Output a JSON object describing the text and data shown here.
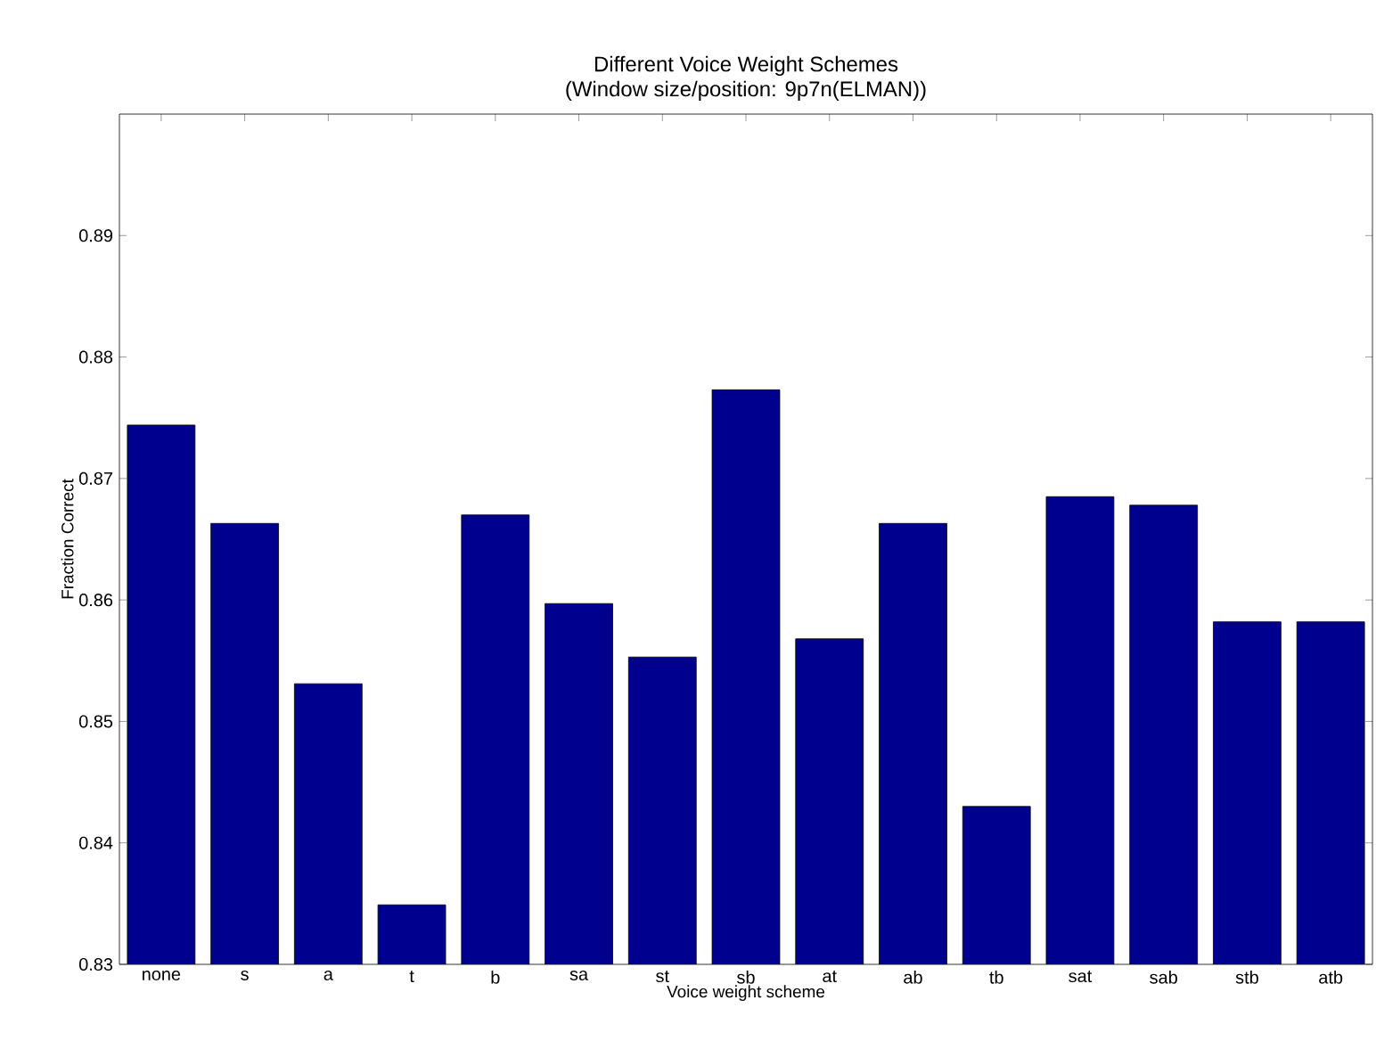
{
  "chart_data": {
    "type": "bar",
    "title": "Different Voice Weight Schemes",
    "subtitle": "(Window size/position: 9p7n(ELMAN))",
    "xlabel": "Voice weight scheme",
    "ylabel": "Fraction Correct",
    "categories": [
      "none",
      "s",
      "a",
      "t",
      "b",
      "sa",
      "st",
      "sb",
      "at",
      "ab",
      "tb",
      "sat",
      "sab",
      "stb",
      "atb"
    ],
    "values": [
      0.8744,
      0.8663,
      0.8531,
      0.8349,
      0.867,
      0.8597,
      0.8553,
      0.8773,
      0.8568,
      0.8663,
      0.843,
      0.8685,
      0.8678,
      0.8582,
      0.8582
    ],
    "color": "#00008f",
    "ylim": [
      0.83,
      0.9
    ],
    "yticks": [
      0.83,
      0.84,
      0.85,
      0.86,
      0.87,
      0.88,
      0.89
    ]
  }
}
